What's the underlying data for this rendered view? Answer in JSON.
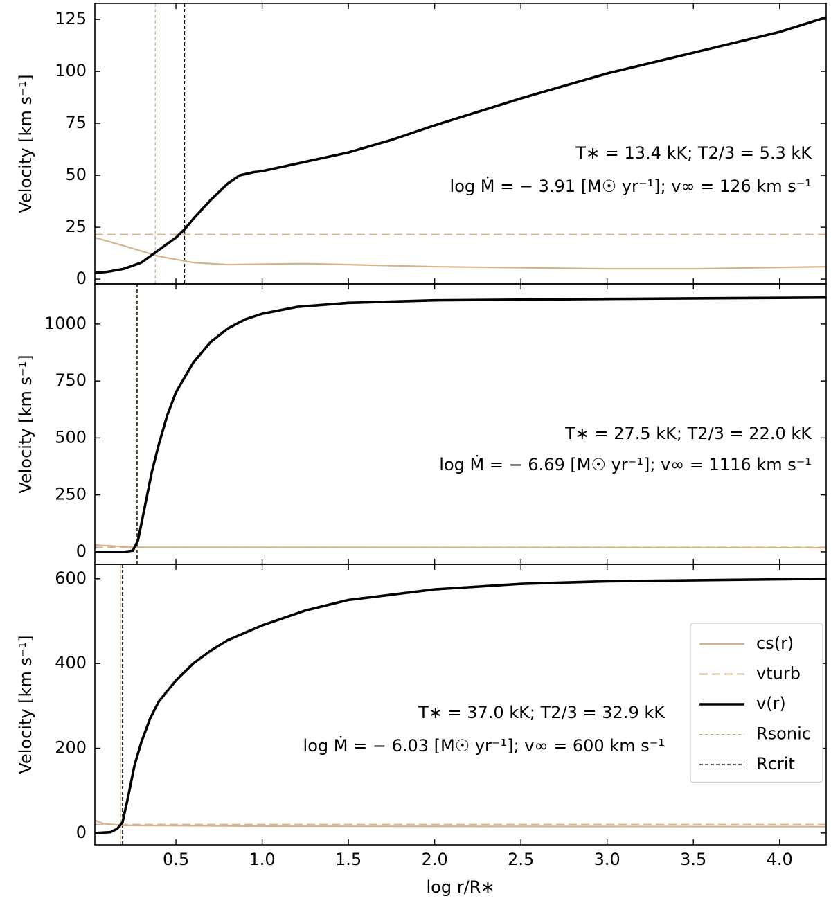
{
  "chart_data": [
    {
      "type": "line",
      "ylabel": "Velocity [km s⁻¹]",
      "annotations": [
        "T∗ = 13.4 kK; T2/3 = 5.3 kK",
        "log Ṁ = − 3.91 [M☉ yr⁻¹]; v∞ = 126 km s⁻¹"
      ],
      "xlim": [
        0.03,
        4.27
      ],
      "ylim": [
        -2.3,
        132.7
      ],
      "xticks": [
        0.5,
        1,
        1.5,
        2,
        2.5,
        3,
        3.5,
        4
      ],
      "yticks": [
        0,
        25,
        50,
        75,
        100,
        125
      ],
      "series": [
        {
          "color": "#d4b48c",
          "style": "solid",
          "x": [
            0.03,
            0.2,
            0.4,
            0.6,
            0.8,
            1.25,
            2.0,
            3.0,
            3.5,
            4.27
          ],
          "values": [
            20,
            16,
            11,
            8,
            7,
            7.5,
            6,
            5,
            5,
            6
          ]
        },
        {
          "color": "#d4b48c",
          "style": "dashed",
          "x": [
            0.03,
            4.27
          ],
          "values": [
            21.5,
            21.5
          ]
        },
        {
          "color": "#000000",
          "style": "thick",
          "x": [
            0.03,
            0.1,
            0.2,
            0.3,
            0.4,
            0.5,
            0.55,
            0.6,
            0.7,
            0.8,
            0.87,
            0.95,
            1.0,
            1.25,
            1.5,
            1.75,
            2.0,
            2.5,
            3.0,
            3.5,
            4.0,
            4.27
          ],
          "values": [
            3,
            3.5,
            5,
            8,
            14,
            20,
            24,
            29,
            38,
            46,
            50,
            51.5,
            52,
            56.5,
            61,
            67,
            74,
            87,
            99,
            109,
            119,
            126
          ]
        }
      ],
      "vlines": [
        {
          "color": "#d4b48c",
          "x": 0.38
        },
        {
          "color": "#000000",
          "x": 0.55
        }
      ]
    },
    {
      "type": "line",
      "ylabel": "Velocity [km s⁻¹]",
      "annotations": [
        "T∗ = 27.5 kK; T2/3 = 22.0 kK",
        "log Ṁ = − 6.69 [M☉ yr⁻¹]; v∞ = 1116 km s⁻¹"
      ],
      "xlim": [
        0.03,
        4.27
      ],
      "ylim": [
        -55,
        1176
      ],
      "xticks": [
        0.5,
        1,
        1.5,
        2,
        2.5,
        3,
        3.5,
        4
      ],
      "yticks": [
        0,
        250,
        500,
        750,
        1000
      ],
      "series": [
        {
          "color": "#d4b48c",
          "style": "solid",
          "x": [
            0.03,
            0.15,
            0.27,
            4.27
          ],
          "values": [
            30,
            25,
            20,
            18
          ]
        },
        {
          "color": "#d4b48c",
          "style": "dashed",
          "x": [
            0.03,
            4.27
          ],
          "values": [
            20,
            20
          ]
        },
        {
          "color": "#000000",
          "style": "thick",
          "x": [
            0.03,
            0.2,
            0.25,
            0.28,
            0.32,
            0.36,
            0.4,
            0.45,
            0.5,
            0.6,
            0.7,
            0.8,
            0.9,
            1.0,
            1.2,
            1.5,
            2.0,
            3.0,
            4.27
          ],
          "values": [
            0,
            0,
            5,
            50,
            200,
            350,
            470,
            600,
            700,
            830,
            920,
            980,
            1020,
            1045,
            1075,
            1093,
            1104,
            1110,
            1116
          ]
        }
      ],
      "vlines": [
        {
          "color": "#d4b48c",
          "x": 0.27
        },
        {
          "color": "#000000",
          "x": 0.275
        }
      ]
    },
    {
      "type": "line",
      "ylabel": "Velocity [km s⁻¹]",
      "xlabel": "log r/R∗",
      "annotations": [
        "T∗ = 37.0 kK; T2/3 = 32.9 kK",
        "log Ṁ = − 6.03 [M☉ yr⁻¹]; v∞ = 600 km s⁻¹"
      ],
      "xlim": [
        0.03,
        4.27
      ],
      "ylim": [
        -28,
        634
      ],
      "xticks": [
        {
          "value": 0.5,
          "label": "0.5"
        },
        {
          "value": 1,
          "label": "1.0"
        },
        {
          "value": 1.5,
          "label": "1.5"
        },
        {
          "value": 2,
          "label": "2.0"
        },
        {
          "value": 2.5,
          "label": "2.5"
        },
        {
          "value": 3,
          "label": "3.0"
        },
        {
          "value": 3.5,
          "label": "3.5"
        },
        {
          "value": 4,
          "label": "4.0"
        }
      ],
      "yticks": [
        0,
        200,
        400,
        600
      ],
      "legend": "right",
      "series": [
        {
          "name": "cs(r)",
          "color": "#d4b48c",
          "style": "solid",
          "x": [
            0.03,
            0.08,
            0.2,
            1.0,
            4.27
          ],
          "values": [
            30,
            22,
            18,
            16,
            15
          ]
        },
        {
          "name": "vturb",
          "color": "#d4b48c",
          "style": "dashed",
          "x": [
            0.03,
            4.27
          ],
          "values": [
            20,
            20
          ]
        },
        {
          "name": "v(r)",
          "color": "#000000",
          "style": "thick",
          "x": [
            0.03,
            0.12,
            0.16,
            0.19,
            0.22,
            0.26,
            0.3,
            0.35,
            0.4,
            0.5,
            0.6,
            0.7,
            0.8,
            1.0,
            1.25,
            1.5,
            2.0,
            2.5,
            3.0,
            4.27
          ],
          "values": [
            0,
            2,
            10,
            25,
            80,
            160,
            215,
            270,
            310,
            360,
            400,
            430,
            455,
            490,
            525,
            550,
            575,
            588,
            594,
            600
          ]
        }
      ],
      "vlines": [
        {
          "name": "Rsonic",
          "color": "#d4b48c",
          "x": 0.18
        },
        {
          "name": "Rcrit",
          "color": "#000000",
          "x": 0.19
        }
      ]
    }
  ]
}
